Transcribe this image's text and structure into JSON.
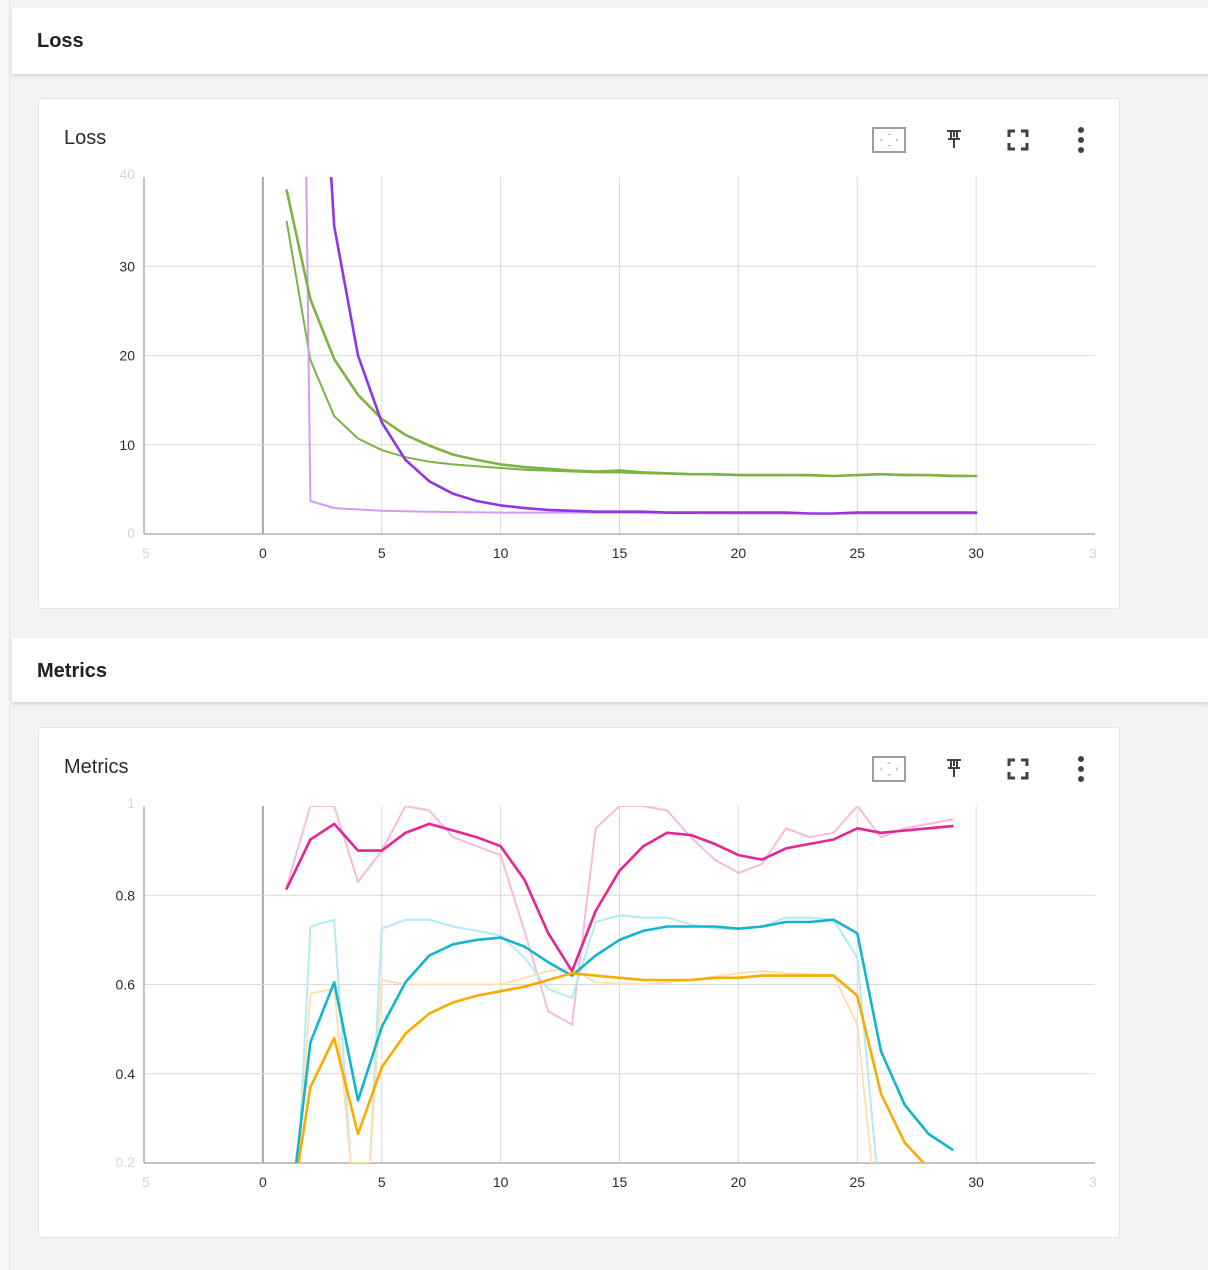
{
  "sections": [
    {
      "header": "Loss",
      "card": {
        "title": "Loss",
        "toolbar": [
          "fit-domain-icon",
          "pin-icon",
          "fullscreen-icon",
          "more-vert-icon"
        ]
      }
    },
    {
      "header": "Metrics",
      "card": {
        "title": "Metrics",
        "toolbar": [
          "fit-domain-icon",
          "pin-icon",
          "fullscreen-icon",
          "more-vert-icon"
        ]
      }
    }
  ],
  "chart_data": [
    {
      "type": "line",
      "title": "Loss",
      "xlabel": "",
      "ylabel": "",
      "xlim": [
        -5,
        35
      ],
      "ylim": [
        0,
        40
      ],
      "x_ticks": [
        0,
        5,
        10,
        15,
        20,
        25,
        30
      ],
      "y_ticks": [
        10,
        20,
        30
      ],
      "faint_x_ticks": [
        "5",
        "3"
      ],
      "faint_y_ticks": [
        "40",
        "0"
      ],
      "grid": true,
      "series": [
        {
          "color": "#7cb342",
          "smoothed": false,
          "x": [
            1,
            2,
            3,
            4,
            5,
            6,
            7,
            8,
            9,
            10,
            11,
            12,
            13,
            14,
            15,
            16,
            18,
            20,
            22,
            24,
            26,
            28,
            30
          ],
          "y": [
            35,
            19.5,
            13.2,
            10.7,
            9.4,
            8.6,
            8.1,
            7.8,
            7.6,
            7.4,
            7.2,
            7.1,
            7.0,
            6.9,
            6.9,
            6.8,
            6.7,
            6.6,
            6.6,
            6.5,
            6.7,
            6.6,
            6.5
          ]
        },
        {
          "color": "#d49bf0",
          "smoothed": false,
          "x": [
            1.8,
            2,
            3,
            5,
            7,
            10,
            15,
            20,
            25,
            30
          ],
          "y": [
            45,
            3.7,
            2.9,
            2.6,
            2.5,
            2.4,
            2.4,
            2.3,
            2.3,
            2.3
          ]
        },
        {
          "color": "#7cb342",
          "smoothed": true,
          "x": [
            1,
            2,
            3,
            4,
            5,
            6,
            7,
            8,
            9,
            10,
            11,
            12,
            13,
            14,
            15,
            16,
            17,
            18,
            19,
            20,
            21,
            22,
            23,
            24,
            25,
            26,
            27,
            28,
            29,
            30
          ],
          "y": [
            38.5,
            26.3,
            19.6,
            15.6,
            12.9,
            11.1,
            9.9,
            8.9,
            8.3,
            7.8,
            7.5,
            7.3,
            7.1,
            7.0,
            7.1,
            6.9,
            6.8,
            6.7,
            6.7,
            6.6,
            6.6,
            6.6,
            6.6,
            6.5,
            6.6,
            6.7,
            6.6,
            6.6,
            6.5,
            6.5
          ]
        },
        {
          "color": "#9334e6",
          "smoothed": true,
          "x": [
            2.85,
            3,
            4,
            5,
            6,
            7,
            8,
            9,
            10,
            11,
            12,
            13,
            14,
            15,
            16,
            17,
            18,
            19,
            20,
            21,
            22,
            23,
            24,
            25,
            26,
            27,
            28,
            29,
            30
          ],
          "y": [
            41,
            34.5,
            20,
            12.5,
            8.3,
            5.9,
            4.5,
            3.7,
            3.2,
            2.9,
            2.7,
            2.6,
            2.5,
            2.5,
            2.5,
            2.4,
            2.4,
            2.4,
            2.4,
            2.4,
            2.4,
            2.3,
            2.3,
            2.4,
            2.4,
            2.4,
            2.4,
            2.4,
            2.4
          ]
        }
      ]
    },
    {
      "type": "line",
      "title": "Metrics",
      "xlabel": "",
      "ylabel": "",
      "xlim": [
        -5,
        35
      ],
      "ylim": [
        0.2,
        1.0
      ],
      "x_ticks": [
        0,
        5,
        10,
        15,
        20,
        25,
        30
      ],
      "y_ticks": [
        0.4,
        0.6,
        0.8
      ],
      "faint_x_ticks": [
        "5",
        "3"
      ],
      "faint_y_ticks": [
        "1",
        "0.2"
      ],
      "grid": true,
      "series": [
        {
          "color": "#f8bbd9",
          "smoothed": false,
          "x": [
            1,
            2,
            3,
            4,
            5,
            6,
            7,
            8,
            9,
            10,
            11,
            12,
            13,
            14,
            15,
            16,
            17,
            18,
            19,
            20,
            21,
            22,
            23,
            24,
            25,
            26,
            27,
            28,
            29
          ],
          "y": [
            0.82,
            1.0,
            1.0,
            0.83,
            0.9,
            1.0,
            0.99,
            0.93,
            0.91,
            0.89,
            0.72,
            0.54,
            0.51,
            0.95,
            1.0,
            1.0,
            0.99,
            0.93,
            0.88,
            0.85,
            0.87,
            0.95,
            0.93,
            0.94,
            1.0,
            0.93,
            0.95,
            0.96,
            0.97
          ]
        },
        {
          "color": "#b2ebf2",
          "smoothed": false,
          "x": [
            1.5,
            2,
            3,
            3.7,
            4.5,
            5,
            6,
            7,
            8,
            9,
            10,
            11,
            12,
            13,
            14,
            15,
            16,
            17,
            18,
            19,
            20,
            21,
            22,
            23,
            24,
            25,
            25.8
          ],
          "y": [
            0.2,
            0.73,
            0.745,
            0.2,
            0.2,
            0.725,
            0.745,
            0.745,
            0.73,
            0.72,
            0.71,
            0.66,
            0.59,
            0.57,
            0.74,
            0.755,
            0.75,
            0.75,
            0.735,
            0.725,
            0.725,
            0.73,
            0.75,
            0.75,
            0.745,
            0.66,
            0.2
          ]
        },
        {
          "color": "#ffe0b2",
          "smoothed": false,
          "x": [
            1.5,
            2,
            3,
            3.7,
            4.5,
            5,
            6,
            8,
            10,
            12,
            13,
            14,
            16,
            18,
            20,
            21,
            22,
            24,
            25,
            25.6
          ],
          "y": [
            0.2,
            0.58,
            0.59,
            0.2,
            0.2,
            0.61,
            0.6,
            0.6,
            0.6,
            0.63,
            0.635,
            0.605,
            0.6,
            0.61,
            0.625,
            0.63,
            0.625,
            0.62,
            0.51,
            0.2
          ]
        },
        {
          "color": "#e52592",
          "smoothed": true,
          "x": [
            1,
            2,
            3,
            4,
            5,
            6,
            7,
            8,
            9,
            10,
            11,
            12,
            13,
            14,
            15,
            16,
            17,
            18,
            19,
            20,
            21,
            22,
            23,
            24,
            25,
            26,
            27,
            28,
            29
          ],
          "y": [
            0.815,
            0.925,
            0.96,
            0.9,
            0.9,
            0.94,
            0.96,
            0.945,
            0.93,
            0.91,
            0.835,
            0.715,
            0.63,
            0.765,
            0.855,
            0.91,
            0.94,
            0.935,
            0.915,
            0.89,
            0.88,
            0.905,
            0.915,
            0.925,
            0.95,
            0.94,
            0.945,
            0.95,
            0.955
          ]
        },
        {
          "color": "#12b5cb",
          "smoothed": true,
          "x": [
            1.4,
            2,
            3,
            4,
            5,
            6,
            7,
            8,
            9,
            10,
            11,
            12,
            13,
            14,
            15,
            16,
            17,
            18,
            19,
            20,
            21,
            22,
            23,
            24,
            25,
            26,
            27,
            28,
            29
          ],
          "y": [
            0.2,
            0.47,
            0.605,
            0.34,
            0.505,
            0.605,
            0.665,
            0.69,
            0.7,
            0.705,
            0.685,
            0.65,
            0.62,
            0.665,
            0.7,
            0.72,
            0.73,
            0.73,
            0.73,
            0.725,
            0.73,
            0.74,
            0.74,
            0.745,
            0.715,
            0.45,
            0.33,
            0.265,
            0.23
          ]
        },
        {
          "color": "#f9ab00",
          "smoothed": true,
          "x": [
            1.5,
            2,
            3,
            4,
            5,
            6,
            7,
            8,
            9,
            10,
            11,
            12,
            13,
            14,
            15,
            16,
            17,
            18,
            19,
            20,
            21,
            22,
            23,
            24,
            25,
            26,
            27,
            27.8
          ],
          "y": [
            0.2,
            0.37,
            0.48,
            0.265,
            0.415,
            0.49,
            0.535,
            0.56,
            0.575,
            0.585,
            0.595,
            0.61,
            0.625,
            0.62,
            0.615,
            0.61,
            0.61,
            0.61,
            0.615,
            0.615,
            0.62,
            0.62,
            0.62,
            0.62,
            0.575,
            0.355,
            0.245,
            0.2
          ]
        }
      ]
    }
  ]
}
